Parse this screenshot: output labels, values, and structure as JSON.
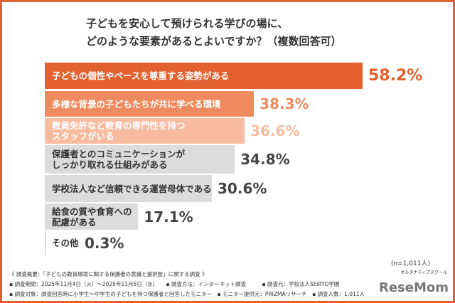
{
  "title": [
    "子どもを安心して預けられる学びの場に、",
    "どのような要素があるとよいですか？（複数回答可）"
  ],
  "chart_data": {
    "type": "bar",
    "orientation": "horizontal",
    "xlim": [
      0,
      60
    ],
    "categories": [
      "子どもの個性やペースを尊重する姿勢がある",
      "多様な背景の子どもたちが共に学べる環境",
      "教員免許など教育の専門性を持つ\nスタッフがいる",
      "保護者とのコミュニケーションが\nしっかり取れる仕組みがある",
      "学校法人など信頼できる運営母体である",
      "給食の質や食育への\n配慮がある",
      "その他"
    ],
    "values": [
      58.2,
      38.3,
      36.6,
      34.8,
      30.6,
      17.1,
      0.3
    ],
    "data_labels": [
      "58.2%",
      "38.3%",
      "36.6%",
      "34.8%",
      "30.6%",
      "17.1%",
      "0.3%"
    ],
    "colors": [
      "#e2612f",
      "#ef8a5f",
      "#f8bba0",
      "#dcdcdc",
      "#dcdcdc",
      "#dcdcdc",
      "#dcdcdc"
    ],
    "label_colors": [
      "#ffffff",
      "#ffffff",
      "#ffffff",
      "#333333",
      "#333333",
      "#333333",
      "#333333"
    ],
    "value_colors": [
      "#e2612f",
      "#ef8a5f",
      "#f8bba0",
      "#444444",
      "#444444",
      "#444444",
      "#444444"
    ]
  },
  "sample": "(n=1,011人)",
  "notes": [
    "《 調査概要：「子どもの教育環境に関する保護者の意識と選択肢」に関する調査 》",
    "▪ 調査期間：2025年11月4日（火）～2025年11月5日（水）　　▪ 調査方法：インターネット調査　　　▪ 調査元：学校法人SEiRYO学園",
    "▪ 調査対象：調査回答時に小学生～中学生の子どもを持つ保護者と回答したモニター　▪ モニター提供元：PRIZMAリサーチ　▪ 調査人数：1,011人"
  ],
  "logo": {
    "text": "ReseMom",
    "sub": "オルタナティブスクール"
  }
}
